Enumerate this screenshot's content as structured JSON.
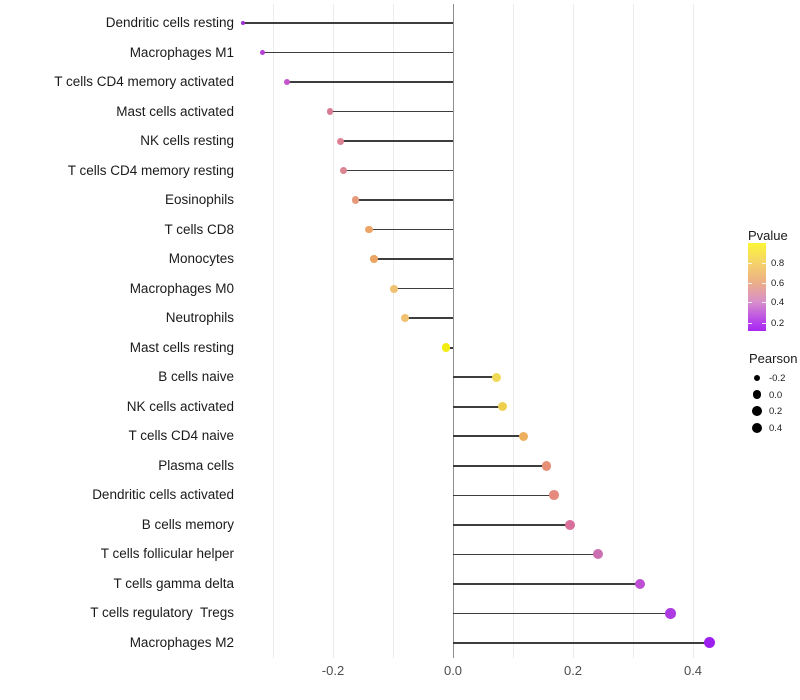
{
  "chart_data": {
    "type": "lollipop",
    "title": "",
    "xlabel": "",
    "ylabel": "",
    "x_axis": {
      "tick_values": [
        -0.2,
        0.0,
        0.2,
        0.4
      ],
      "tick_labels": [
        "-0.2",
        "0.0",
        "0.2",
        "0.4"
      ],
      "gridline_values": [
        -0.3,
        -0.2,
        -0.1,
        0.0,
        0.1,
        0.2,
        0.3,
        0.4
      ],
      "zero_line": 0.0,
      "xlim": [
        -0.39,
        0.46
      ]
    },
    "grid": "vertical-only",
    "rows": [
      {
        "label": "Dendritic cells resting",
        "pearson": -0.35,
        "dot_color": "#9b2fd1"
      },
      {
        "label": "Macrophages M1",
        "pearson": -0.318,
        "dot_color": "#b83fd6"
      },
      {
        "label": "T cells CD4 memory activated",
        "pearson": -0.277,
        "dot_color": "#c455ca"
      },
      {
        "label": "Mast cells activated",
        "pearson": -0.205,
        "dot_color": "#d87c96"
      },
      {
        "label": "NK cells resting",
        "pearson": -0.188,
        "dot_color": "#db8295"
      },
      {
        "label": "T cells CD4 memory resting",
        "pearson": -0.182,
        "dot_color": "#db8492"
      },
      {
        "label": "Eosinophils",
        "pearson": -0.163,
        "dot_color": "#e69b7c"
      },
      {
        "label": "T cells CD8",
        "pearson": -0.14,
        "dot_color": "#eca567"
      },
      {
        "label": "Monocytes",
        "pearson": -0.132,
        "dot_color": "#eca462"
      },
      {
        "label": "Macrophages M0",
        "pearson": -0.098,
        "dot_color": "#efc173"
      },
      {
        "label": "Neutrophils",
        "pearson": -0.08,
        "dot_color": "#efc170"
      },
      {
        "label": "Mast cells resting",
        "pearson": -0.012,
        "dot_color": "#f2ec13"
      },
      {
        "label": "B cells naive",
        "pearson": 0.072,
        "dot_color": "#f0da55"
      },
      {
        "label": "NK cells activated",
        "pearson": 0.083,
        "dot_color": "#efd04e"
      },
      {
        "label": "T cells CD4 naive",
        "pearson": 0.118,
        "dot_color": "#edaf5e"
      },
      {
        "label": "Plasma cells",
        "pearson": 0.156,
        "dot_color": "#e69077"
      },
      {
        "label": "Dendritic cells activated",
        "pearson": 0.168,
        "dot_color": "#e58a7d"
      },
      {
        "label": "B cells memory",
        "pearson": 0.195,
        "dot_color": "#d7719b"
      },
      {
        "label": "T cells follicular helper",
        "pearson": 0.242,
        "dot_color": "#cc6fb0"
      },
      {
        "label": "T cells gamma delta",
        "pearson": 0.312,
        "dot_color": "#bc50d1"
      },
      {
        "label": "T cells regulatory  Tregs",
        "pearson": 0.362,
        "dot_color": "#ad3be2"
      },
      {
        "label": "Macrophages M2",
        "pearson": 0.427,
        "dot_color": "#9d20ee"
      }
    ]
  },
  "legend": {
    "pvalue": {
      "title": "Pvalue",
      "tick_labels": [
        "0.8",
        "0.6",
        "0.4",
        "0.2"
      ],
      "gradient_top_to_bottom": [
        "#fcf536",
        "#f5d469",
        "#ecaf87",
        "#d88fcb",
        "#b23bed",
        "#a728f0"
      ]
    },
    "pearson": {
      "title": "Pearson",
      "items": [
        {
          "label": "-0.2",
          "value": -0.2
        },
        {
          "label": "0.0",
          "value": 0.0
        },
        {
          "label": "0.2",
          "value": 0.2
        },
        {
          "label": "0.4",
          "value": 0.4
        }
      ]
    }
  },
  "colors": {
    "segment": "#3d3d3d",
    "zero_line": "#8f8f8f",
    "gridline": "#ececec",
    "background": "#ffffff"
  }
}
